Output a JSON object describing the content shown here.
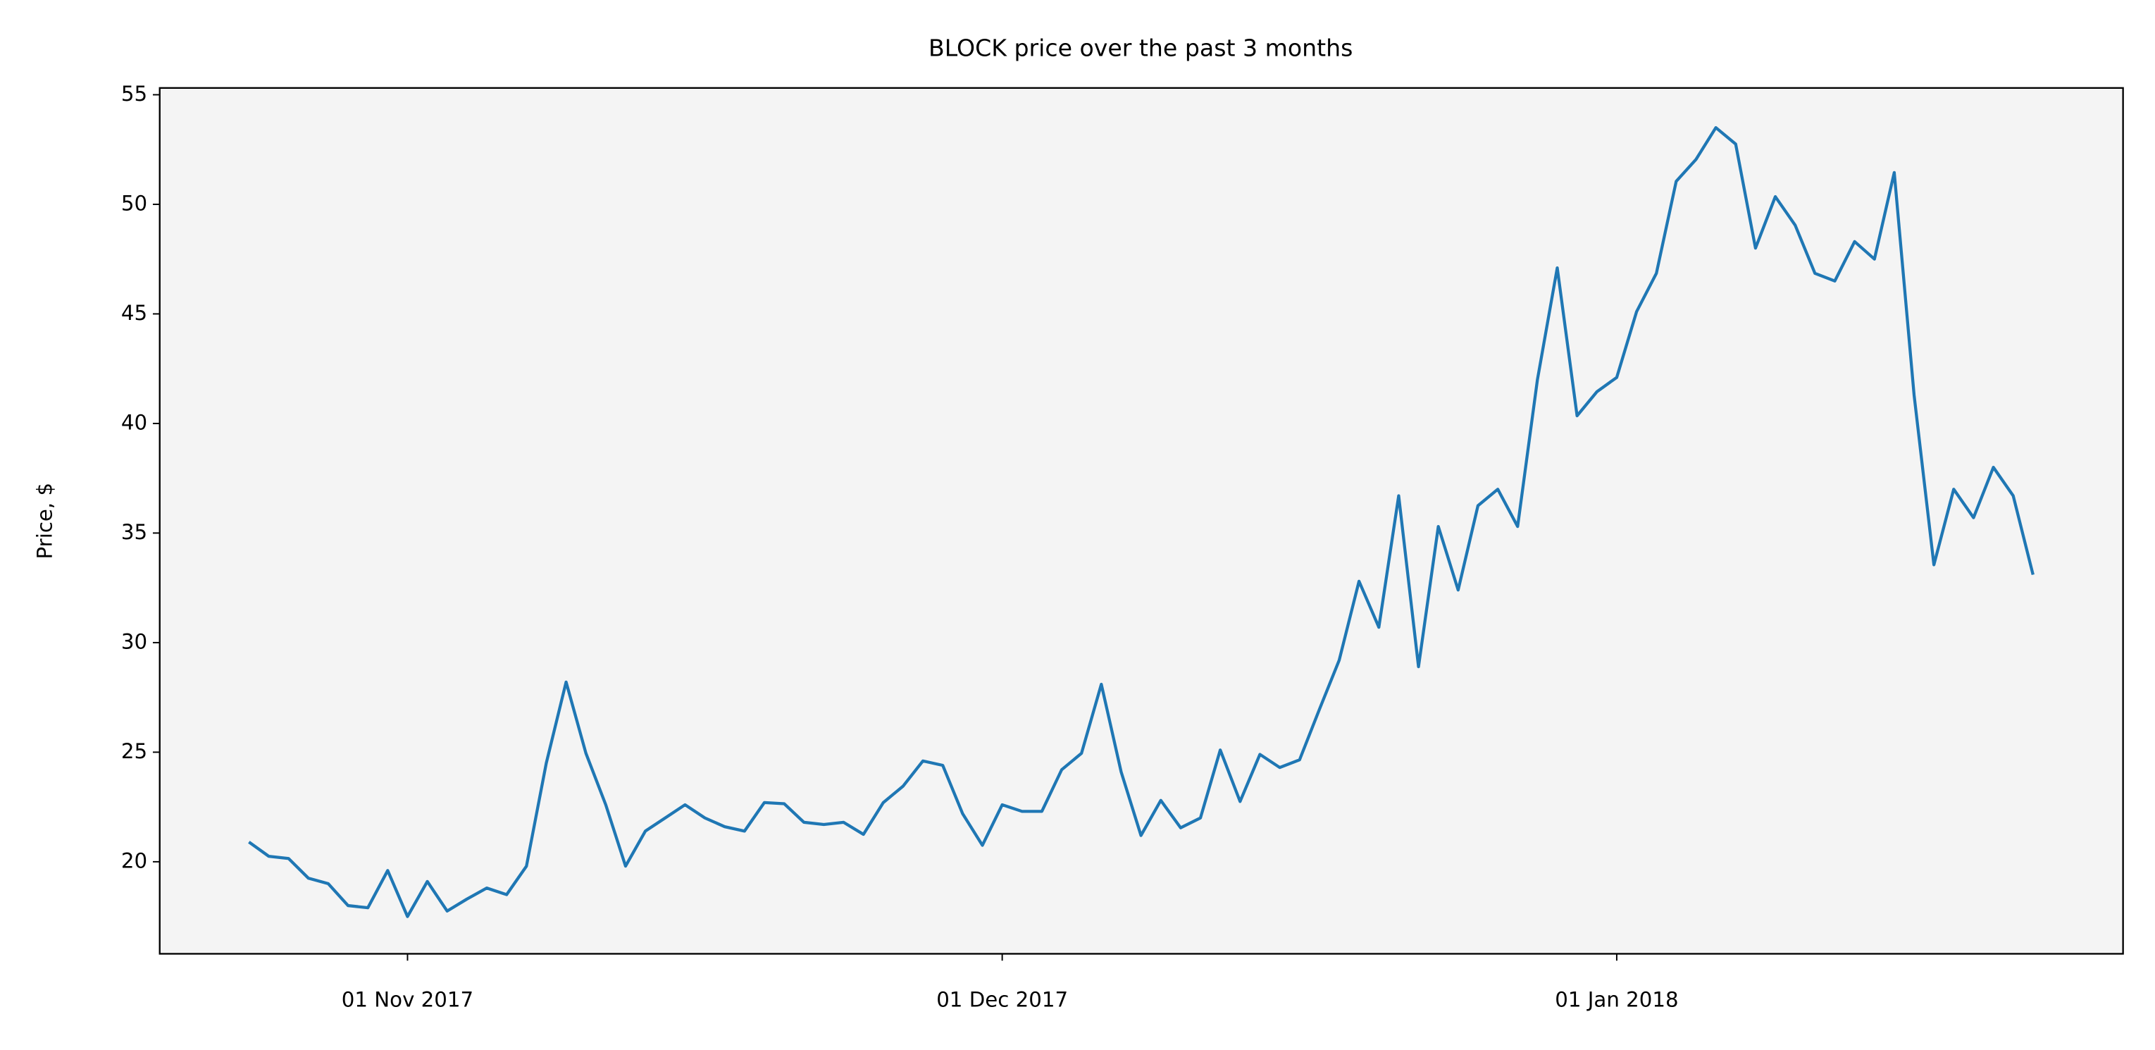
{
  "chart_data": {
    "type": "line",
    "title": "BLOCK price over the past 3 months",
    "ylabel": "Price, $",
    "x": [
      "2017-10-24",
      "2017-10-25",
      "2017-10-26",
      "2017-10-27",
      "2017-10-28",
      "2017-10-29",
      "2017-10-30",
      "2017-10-31",
      "2017-11-01",
      "2017-11-02",
      "2017-11-03",
      "2017-11-04",
      "2017-11-05",
      "2017-11-06",
      "2017-11-07",
      "2017-11-08",
      "2017-11-09",
      "2017-11-10",
      "2017-11-11",
      "2017-11-12",
      "2017-11-13",
      "2017-11-14",
      "2017-11-15",
      "2017-11-16",
      "2017-11-17",
      "2017-11-18",
      "2017-11-19",
      "2017-11-20",
      "2017-11-21",
      "2017-11-22",
      "2017-11-23",
      "2017-11-24",
      "2017-11-25",
      "2017-11-26",
      "2017-11-27",
      "2017-11-28",
      "2017-11-29",
      "2017-11-30",
      "2017-12-01",
      "2017-12-02",
      "2017-12-03",
      "2017-12-04",
      "2017-12-05",
      "2017-12-06",
      "2017-12-07",
      "2017-12-08",
      "2017-12-09",
      "2017-12-10",
      "2017-12-11",
      "2017-12-12",
      "2017-12-13",
      "2017-12-14",
      "2017-12-15",
      "2017-12-16",
      "2017-12-17",
      "2017-12-18",
      "2017-12-19",
      "2017-12-20",
      "2017-12-21",
      "2017-12-22",
      "2017-12-23",
      "2017-12-24",
      "2017-12-25",
      "2017-12-26",
      "2017-12-27",
      "2017-12-28",
      "2017-12-29",
      "2017-12-30",
      "2017-12-31",
      "2018-01-01",
      "2018-01-02",
      "2018-01-03",
      "2018-01-04",
      "2018-01-05",
      "2018-01-06",
      "2018-01-07",
      "2018-01-08",
      "2018-01-09",
      "2018-01-10",
      "2018-01-11",
      "2018-01-12",
      "2018-01-13",
      "2018-01-14",
      "2018-01-15",
      "2018-01-16",
      "2018-01-17",
      "2018-01-18",
      "2018-01-19",
      "2018-01-20",
      "2018-01-21",
      "2018-01-22"
    ],
    "values": [
      20.9,
      20.25,
      20.15,
      19.25,
      19.0,
      18.0,
      17.9,
      19.6,
      17.5,
      19.1,
      17.75,
      18.3,
      18.8,
      18.5,
      19.8,
      24.5,
      28.2,
      24.95,
      22.6,
      19.8,
      21.4,
      22.0,
      22.6,
      22.0,
      21.6,
      21.4,
      22.7,
      22.65,
      21.8,
      21.7,
      21.8,
      21.25,
      22.7,
      23.45,
      24.6,
      24.4,
      22.2,
      20.75,
      22.6,
      22.3,
      22.3,
      24.2,
      24.95,
      28.1,
      24.1,
      21.2,
      22.8,
      21.55,
      22.0,
      25.1,
      22.75,
      24.9,
      24.3,
      24.65,
      26.95,
      29.2,
      32.8,
      30.7,
      36.7,
      28.9,
      35.3,
      32.4,
      36.25,
      37.0,
      35.3,
      42.0,
      47.1,
      40.35,
      41.45,
      42.1,
      45.1,
      46.85,
      51.05,
      52.05,
      53.5,
      52.75,
      48.0,
      50.35,
      49.05,
      46.85,
      46.5,
      48.3,
      47.5,
      51.45,
      41.3,
      33.55,
      37.0,
      35.7,
      38.0,
      36.7,
      33.1
    ],
    "color": "#1f77b4",
    "xlim": [
      "2017-10-19T12:00:00Z",
      "2018-01-26T13:00:00Z"
    ],
    "xticks": [
      {
        "value": "2017-11-01",
        "label": "01 Nov 2017"
      },
      {
        "value": "2017-12-01",
        "label": "01 Dec 2017"
      },
      {
        "value": "2018-01-01",
        "label": "01 Jan 2018"
      }
    ],
    "ylim": [
      15.8,
      55.31
    ],
    "yticks": [
      20,
      25,
      30,
      35,
      40,
      45,
      50,
      55
    ],
    "background": "#f4f4f4",
    "grid": false
  }
}
